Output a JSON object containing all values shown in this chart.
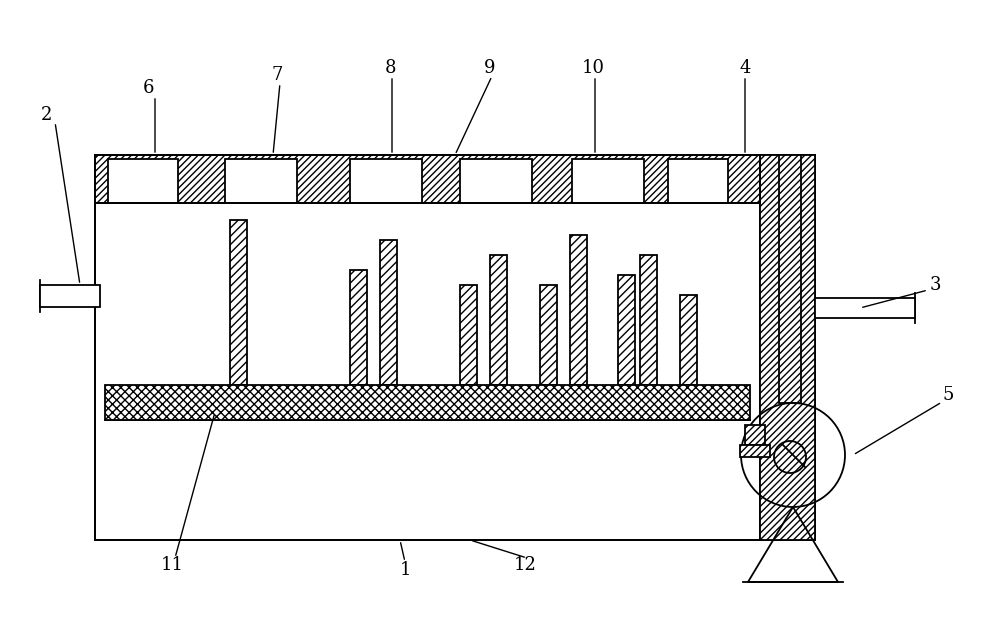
{
  "bg_color": "#ffffff",
  "line_color": "#000000",
  "figsize": [
    10.0,
    6.35
  ],
  "dpi": 100,
  "lw": 1.3
}
